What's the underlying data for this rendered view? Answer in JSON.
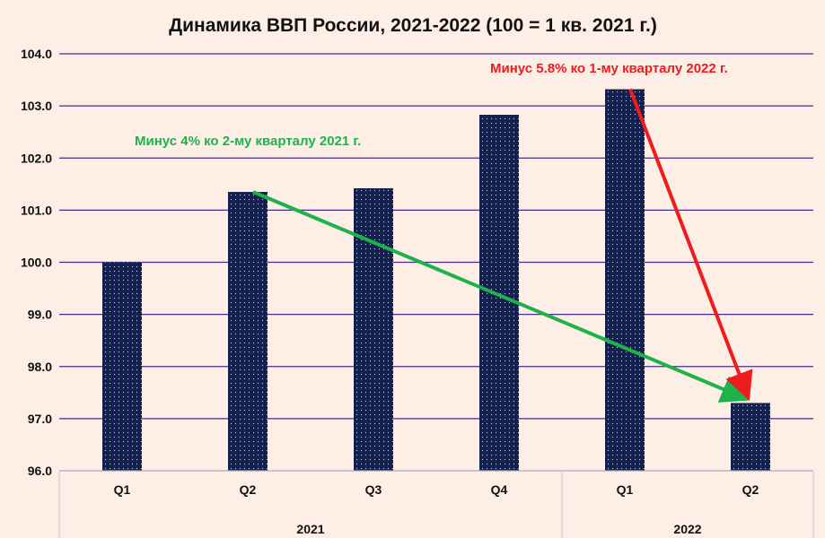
{
  "chart_data": {
    "type": "bar",
    "title": "Динамика ВВП России, 2021-2022 (100 = 1 кв. 2021 г.)",
    "categories": [
      "Q1",
      "Q2",
      "Q3",
      "Q4",
      "Q1",
      "Q2"
    ],
    "groups": [
      {
        "label": "2021",
        "categories": [
          "Q1",
          "Q2",
          "Q3",
          "Q4"
        ]
      },
      {
        "label": "2022",
        "categories": [
          "Q1",
          "Q2"
        ]
      }
    ],
    "values": [
      100.0,
      101.35,
      101.42,
      102.83,
      103.32,
      97.3
    ],
    "ylim": [
      96.0,
      104.0
    ],
    "yticks": [
      "96.0",
      "97.0",
      "98.0",
      "99.0",
      "100.0",
      "101.0",
      "102.0",
      "103.0",
      "104.0"
    ],
    "grid": true,
    "bar_color": "#14214f",
    "grid_color": "#4a2a8a",
    "annotations": [
      {
        "text": "Минус 4% ко 2-му кварталу 2021 г.",
        "color": "#1db34a",
        "from_index": 1,
        "to_index": 5
      },
      {
        "text": "Минус 5.8% ко 1-му кварталу 2022 г.",
        "color": "#ee1c1c",
        "from_index": 4,
        "to_index": 5
      }
    ]
  }
}
